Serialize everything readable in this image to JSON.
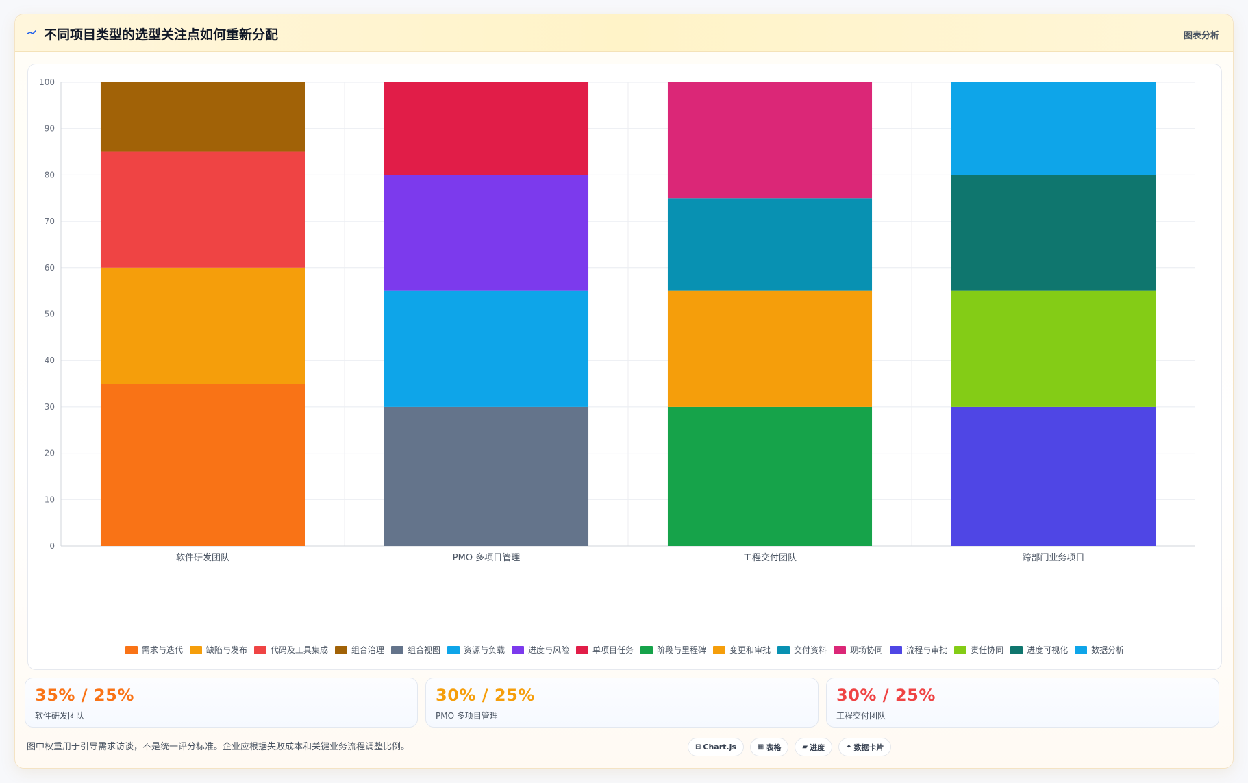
{
  "header": {
    "title_icon": "trend-line-icon",
    "title": "不同项目类型的选型关注点如何重新分配",
    "link": "图表分析"
  },
  "chart_data": {
    "type": "bar",
    "stacked": true,
    "categories": [
      "软件研发团队",
      "PMO 多项目管理",
      "工程交付团队",
      "跨部门业务项目"
    ],
    "ylim": [
      0,
      100
    ],
    "yticks": [
      0,
      10,
      20,
      30,
      40,
      50,
      60,
      70,
      80,
      90,
      100
    ],
    "grid": true,
    "legend_position": "bottom",
    "series": [
      {
        "name": "需求与迭代",
        "color": "#f97316",
        "values": [
          35,
          0,
          0,
          0
        ]
      },
      {
        "name": "缺陷与发布",
        "color": "#f59e0b",
        "values": [
          25,
          0,
          0,
          0
        ]
      },
      {
        "name": "代码及工具集成",
        "color": "#ef4444",
        "values": [
          25,
          0,
          0,
          0
        ]
      },
      {
        "name": "组合治理",
        "color": "#a16207",
        "values": [
          15,
          0,
          0,
          0
        ]
      },
      {
        "name": "组合视图",
        "color": "#64748b",
        "values": [
          0,
          30,
          0,
          0
        ]
      },
      {
        "name": "资源与负载",
        "color": "#0ea5e9",
        "values": [
          0,
          25,
          0,
          0
        ]
      },
      {
        "name": "进度与风险",
        "color": "#7c3aed",
        "values": [
          0,
          25,
          0,
          0
        ]
      },
      {
        "name": "单项目任务",
        "color": "#e11d48",
        "values": [
          0,
          20,
          0,
          0
        ]
      },
      {
        "name": "阶段与里程碑",
        "color": "#16a34a",
        "values": [
          0,
          0,
          30,
          0
        ]
      },
      {
        "name": "变更和审批",
        "color": "#f59e0b",
        "values": [
          0,
          0,
          25,
          0
        ]
      },
      {
        "name": "交付资料",
        "color": "#0891b2",
        "values": [
          0,
          0,
          20,
          0
        ]
      },
      {
        "name": "现场协同",
        "color": "#db2777",
        "values": [
          0,
          0,
          25,
          0
        ]
      },
      {
        "name": "流程与审批",
        "color": "#4f46e5",
        "values": [
          0,
          0,
          0,
          30
        ]
      },
      {
        "name": "责任协同",
        "color": "#84cc16",
        "values": [
          0,
          0,
          0,
          25
        ]
      },
      {
        "name": "进度可视化",
        "color": "#0f766e",
        "values": [
          0,
          0,
          0,
          25
        ]
      },
      {
        "name": "数据分析",
        "color": "#0ea5e9",
        "values": [
          0,
          0,
          0,
          20
        ]
      }
    ]
  },
  "stats": [
    {
      "value": "35% / 25%",
      "label": "软件研发团队",
      "color": "#f97316"
    },
    {
      "value": "30% / 25%",
      "label": "PMO 多项目管理",
      "color": "#f59e0b"
    },
    {
      "value": "30% / 25%",
      "label": "工程交付团队",
      "color": "#ef4444"
    }
  ],
  "footnote": "图中权重用于引导需求访谈，不是统一评分标准。企业应根据失败成本和关键业务流程调整比例。",
  "chips": [
    {
      "icon": "⊟",
      "icon_name": "chart-js-icon",
      "label": "Chart.js"
    },
    {
      "icon": "▦",
      "icon_name": "table-icon",
      "label": "表格"
    },
    {
      "icon": "▰",
      "icon_name": "progress-icon",
      "label": "进度"
    },
    {
      "icon": "✦",
      "icon_name": "data-card-icon",
      "label": "数据卡片"
    }
  ]
}
